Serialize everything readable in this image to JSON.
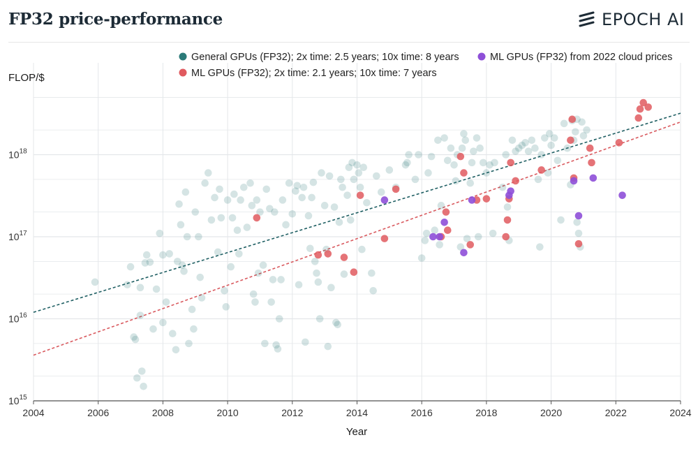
{
  "header": {
    "title": "FP32 price-performance",
    "brand": "EPOCH AI",
    "brand_icon": "epoch-logo-icon"
  },
  "colors": {
    "general": "#2b7a78",
    "ml": "#e05a5f",
    "cloud": "#8e4fd8",
    "grid": "#e4e7ea"
  },
  "chart_data": {
    "type": "scatter",
    "xlabel": "Year",
    "ylabel": "FLOP/$",
    "y_scale": "log",
    "xlim": [
      2004,
      2024
    ],
    "ylim": [
      1000000000000000.0,
      1e+19
    ],
    "x_ticks": [
      {
        "value": 2004,
        "label": "2004"
      },
      {
        "value": 2006,
        "label": "2006"
      },
      {
        "value": 2008,
        "label": "2008"
      },
      {
        "value": 2010,
        "label": "2010"
      },
      {
        "value": 2012,
        "label": "2012"
      },
      {
        "value": 2014,
        "label": "2014"
      },
      {
        "value": 2016,
        "label": "2016"
      },
      {
        "value": 2018,
        "label": "2018"
      },
      {
        "value": 2020,
        "label": "2020"
      },
      {
        "value": 2022,
        "label": "2022"
      },
      {
        "value": 2024,
        "label": "2024"
      }
    ],
    "y_ticks": [
      {
        "value": 15,
        "base": "10",
        "exp": "15"
      },
      {
        "value": 16,
        "base": "10",
        "exp": "16"
      },
      {
        "value": 17,
        "base": "10",
        "exp": "17"
      },
      {
        "value": 18,
        "base": "10",
        "exp": "18"
      }
    ],
    "legend": [
      {
        "series": "ml_cloud",
        "label": "ML GPUs (FP32) from 2022 cloud prices",
        "position": "top-right"
      },
      {
        "series": "general",
        "label": "General GPUs (FP32); 2x time: 2.5 years; 10x time: 8 years",
        "position": "top"
      },
      {
        "series": "ml",
        "label": "ML GPUs (FP32); 2x time: 2.1 years; 10x time: 7 years",
        "position": "top"
      }
    ],
    "trend_lines": [
      {
        "series": "general",
        "x": [
          2004,
          2024
        ],
        "y": [
          1.2e+16,
          3.2e+18
        ]
      },
      {
        "series": "ml",
        "x": [
          2004,
          2024
        ],
        "y": [
          3600000000000000.0,
          2.5e+18
        ]
      }
    ],
    "series": [
      {
        "name": "General GPUs (FP32)",
        "key": "general",
        "points": [
          [
            2005.9,
            2.8e+16
          ],
          [
            2006.9,
            2.6e+16
          ],
          [
            2007.0,
            4.3e+16
          ],
          [
            2007.1,
            6000000000000000.0
          ],
          [
            2007.15,
            5600000000000000.0
          ],
          [
            2007.2,
            1900000000000000.0
          ],
          [
            2007.3,
            2.4e+16
          ],
          [
            2007.3,
            1.1e+16
          ],
          [
            2007.35,
            2300000000000000.0
          ],
          [
            2007.4,
            1500000000000000.0
          ],
          [
            2007.45,
            4.8e+16
          ],
          [
            2007.5,
            6e+16
          ],
          [
            2007.6,
            4.9e+16
          ],
          [
            2007.7,
            7500000000000000.0
          ],
          [
            2007.8,
            2.3e+16
          ],
          [
            2007.9,
            1.1e+17
          ],
          [
            2008.0,
            6e+16
          ],
          [
            2008.0,
            9000000000000000.0
          ],
          [
            2008.1,
            1.6e+16
          ],
          [
            2008.2,
            6.2e+16
          ],
          [
            2008.3,
            6600000000000000.0
          ],
          [
            2008.4,
            4200000000000000.0
          ],
          [
            2008.45,
            5e+16
          ],
          [
            2008.5,
            2.5e+17
          ],
          [
            2008.55,
            1.4e+17
          ],
          [
            2008.6,
            4.5e+16
          ],
          [
            2008.65,
            3.8e+16
          ],
          [
            2008.7,
            3.5e+17
          ],
          [
            2008.75,
            1e+17
          ],
          [
            2008.8,
            5000000000000000.0
          ],
          [
            2008.9,
            1.3e+16
          ],
          [
            2008.95,
            7500000000000000.0
          ],
          [
            2009.0,
            2e+17
          ],
          [
            2009.1,
            1e+17
          ],
          [
            2009.15,
            3.2e+16
          ],
          [
            2009.2,
            1.8e+16
          ],
          [
            2009.3,
            4.5e+17
          ],
          [
            2009.4,
            6e+17
          ],
          [
            2009.5,
            1.6e+17
          ],
          [
            2009.6,
            3e+17
          ],
          [
            2009.7,
            6.5e+16
          ],
          [
            2009.75,
            3.8e+17
          ],
          [
            2009.8,
            1.7e+17
          ],
          [
            2009.9,
            2.2e+16
          ],
          [
            2009.95,
            1.4e+16
          ],
          [
            2010.0,
            2.8e+17
          ],
          [
            2010.1,
            4.3e+16
          ],
          [
            2010.15,
            1.7e+17
          ],
          [
            2010.2,
            3.3e+17
          ],
          [
            2010.3,
            1.2e+17
          ],
          [
            2010.35,
            6.2e+16
          ],
          [
            2010.4,
            2.8e+17
          ],
          [
            2010.5,
            4e+17
          ],
          [
            2010.6,
            1.3e+17
          ],
          [
            2010.7,
            4.5e+17
          ],
          [
            2010.75,
            2.4e+17
          ],
          [
            2010.8,
            2e+16
          ],
          [
            2010.85,
            1.6e+16
          ],
          [
            2010.9,
            2.8e+17
          ],
          [
            2010.95,
            3.6e+16
          ],
          [
            2011.0,
            2e+17
          ],
          [
            2011.1,
            4.5e+16
          ],
          [
            2011.15,
            5000000000000000.0
          ],
          [
            2011.2,
            3.8e+17
          ],
          [
            2011.3,
            2.2e+17
          ],
          [
            2011.35,
            1.6e+16
          ],
          [
            2011.4,
            3e+16
          ],
          [
            2011.45,
            2e+17
          ],
          [
            2011.5,
            4800000000000000.0
          ],
          [
            2011.55,
            4300000000000000.0
          ],
          [
            2011.6,
            1e+16
          ],
          [
            2011.65,
            3e+16
          ],
          [
            2011.7,
            2.8e+17
          ],
          [
            2011.8,
            1.4e+17
          ],
          [
            2011.9,
            4.5e+17
          ],
          [
            2012.0,
            1.9e+17
          ],
          [
            2012.1,
            3.6e+17
          ],
          [
            2012.15,
            4.2e+17
          ],
          [
            2012.2,
            2.6e+16
          ],
          [
            2012.3,
            3e+17
          ],
          [
            2012.35,
            4e+17
          ],
          [
            2012.4,
            5200000000000000.0
          ],
          [
            2012.5,
            1.8e+17
          ],
          [
            2012.55,
            7.2e+16
          ],
          [
            2012.6,
            3e+17
          ],
          [
            2012.65,
            4.6e+17
          ],
          [
            2012.7,
            5e+16
          ],
          [
            2012.75,
            3.6e+16
          ],
          [
            2012.8,
            2.8e+16
          ],
          [
            2012.85,
            1e+16
          ],
          [
            2012.9,
            6e+17
          ],
          [
            2013.0,
            2.4e+17
          ],
          [
            2013.05,
            7e+16
          ],
          [
            2013.1,
            4600000000000000.0
          ],
          [
            2013.15,
            5.5e+17
          ],
          [
            2013.2,
            2.4e+16
          ],
          [
            2013.3,
            2.3e+17
          ],
          [
            2013.35,
            9000000000000000.0
          ],
          [
            2013.4,
            8500000000000000.0
          ],
          [
            2013.45,
            1.5e+17
          ],
          [
            2013.5,
            5e+17
          ],
          [
            2013.55,
            4e+17
          ],
          [
            2013.6,
            3.5e+16
          ],
          [
            2013.7,
            3.2e+17
          ],
          [
            2013.75,
            7e+17
          ],
          [
            2013.8,
            1.6e+17
          ],
          [
            2013.85,
            8e+17
          ],
          [
            2013.9,
            5e+17
          ],
          [
            2014.0,
            7.5e+17
          ],
          [
            2014.05,
            6e+17
          ],
          [
            2014.1,
            4e+17
          ],
          [
            2014.15,
            7e+16
          ],
          [
            2014.2,
            7e+17
          ],
          [
            2014.3,
            2.6e+17
          ],
          [
            2014.45,
            3.6e+16
          ],
          [
            2014.5,
            2.2e+16
          ],
          [
            2014.6,
            5.5e+17
          ],
          [
            2014.75,
            3.5e+17
          ],
          [
            2015.0,
            6.5e+17
          ],
          [
            2015.2,
            4e+17
          ],
          [
            2015.5,
            7.5e+17
          ],
          [
            2015.55,
            8e+17
          ],
          [
            2015.6,
            1e+18
          ],
          [
            2015.8,
            5e+17
          ],
          [
            2015.9,
            1e+18
          ],
          [
            2016.0,
            5.5e+16
          ],
          [
            2016.1,
            9e+16
          ],
          [
            2016.15,
            1.1e+17
          ],
          [
            2016.2,
            6e+17
          ],
          [
            2016.3,
            9.5e+17
          ],
          [
            2016.4,
            1.2e+17
          ],
          [
            2016.5,
            1.5e+18
          ],
          [
            2016.55,
            8e+16
          ],
          [
            2016.6,
            2.4e+17
          ],
          [
            2016.7,
            1.6e+18
          ],
          [
            2016.8,
            8.5e+17
          ],
          [
            2016.9,
            1.2e+18
          ],
          [
            2017.0,
            7.5e+17
          ],
          [
            2017.05,
            4.8e+17
          ],
          [
            2017.1,
            1e+18
          ],
          [
            2017.2,
            7.5e+16
          ],
          [
            2017.25,
            1.2e+18
          ],
          [
            2017.3,
            1.8e+18
          ],
          [
            2017.35,
            1.5e+18
          ],
          [
            2017.4,
            9.5e+16
          ],
          [
            2017.5,
            4.5e+17
          ],
          [
            2017.55,
            8e+17
          ],
          [
            2017.6,
            1.1e+18
          ],
          [
            2017.7,
            1.6e+18
          ],
          [
            2017.75,
            1e+17
          ],
          [
            2017.8,
            1.2e+18
          ],
          [
            2017.9,
            8e+17
          ],
          [
            2018.0,
            6e+17
          ],
          [
            2018.1,
            7.5e+17
          ],
          [
            2018.2,
            1.1e+17
          ],
          [
            2018.25,
            8e+17
          ],
          [
            2018.5,
            4e+17
          ],
          [
            2018.6,
            1e+18
          ],
          [
            2018.65,
            2.3e+17
          ],
          [
            2018.7,
            9e+16
          ],
          [
            2018.8,
            1.5e+18
          ],
          [
            2018.9,
            1.1e+18
          ],
          [
            2019.0,
            1.2e+18
          ],
          [
            2019.1,
            1.3e+18
          ],
          [
            2019.2,
            1.4e+18
          ],
          [
            2019.3,
            1.1e+18
          ],
          [
            2019.4,
            1.5e+18
          ],
          [
            2019.5,
            1.2e+18
          ],
          [
            2019.6,
            5e+17
          ],
          [
            2019.65,
            7.5e+16
          ],
          [
            2019.7,
            1e+18
          ],
          [
            2019.8,
            1.6e+18
          ],
          [
            2019.9,
            6e+17
          ],
          [
            2019.95,
            1.8e+18
          ],
          [
            2020.0,
            1.3e+18
          ],
          [
            2020.1,
            1.6e+18
          ],
          [
            2020.2,
            8.5e+17
          ],
          [
            2020.3,
            1.6e+17
          ],
          [
            2020.4,
            2.4e+18
          ],
          [
            2020.5,
            1.2e+18
          ],
          [
            2020.6,
            4.3e+17
          ],
          [
            2020.65,
            2.6e+18
          ],
          [
            2020.7,
            1.5e+18
          ],
          [
            2020.75,
            1.9e+18
          ],
          [
            2020.8,
            1.5e+17
          ],
          [
            2020.85,
            1.1e+17
          ],
          [
            2020.9,
            7.5e+16
          ],
          [
            2020.95,
            2.5e+18
          ],
          [
            2021.0,
            1.7e+18
          ],
          [
            2021.1,
            2e+18
          ],
          [
            2020.8,
            2.7e+18
          ]
        ]
      },
      {
        "name": "ML GPUs (FP32)",
        "key": "ml",
        "points": [
          [
            2010.9,
            1.7e+17
          ],
          [
            2012.8,
            6e+16
          ],
          [
            2013.1,
            6.2e+16
          ],
          [
            2013.6,
            5.6e+16
          ],
          [
            2013.9,
            3.7e+16
          ],
          [
            2014.1,
            3.2e+17
          ],
          [
            2014.85,
            9.5e+16
          ],
          [
            2015.2,
            3.8e+17
          ],
          [
            2016.6,
            1e+17
          ],
          [
            2016.75,
            2e+17
          ],
          [
            2016.8,
            1.2e+17
          ],
          [
            2017.2,
            9.5e+17
          ],
          [
            2017.3,
            6e+17
          ],
          [
            2017.5,
            8e+16
          ],
          [
            2017.7,
            2.8e+17
          ],
          [
            2018.0,
            2.9e+17
          ],
          [
            2018.6,
            1e+17
          ],
          [
            2018.65,
            1.6e+17
          ],
          [
            2018.7,
            2.9e+17
          ],
          [
            2018.75,
            8e+17
          ],
          [
            2018.9,
            4.8e+17
          ],
          [
            2019.7,
            6.5e+17
          ],
          [
            2020.6,
            1.5e+18
          ],
          [
            2020.65,
            2.7e+18
          ],
          [
            2020.7,
            5.2e+17
          ],
          [
            2020.85,
            8.2e+16
          ],
          [
            2021.2,
            1.2e+18
          ],
          [
            2021.25,
            8e+17
          ],
          [
            2022.1,
            1.4e+18
          ],
          [
            2022.7,
            2.8e+18
          ],
          [
            2022.75,
            3.6e+18
          ],
          [
            2022.85,
            4.3e+18
          ],
          [
            2023.0,
            3.8e+18
          ]
        ]
      },
      {
        "name": "ML GPUs (FP32) from 2022 cloud prices",
        "key": "ml_cloud",
        "points": [
          [
            2014.85,
            2.8e+17
          ],
          [
            2016.35,
            1e+17
          ],
          [
            2016.55,
            1e+17
          ],
          [
            2016.7,
            1.5e+17
          ],
          [
            2017.3,
            6.4e+16
          ],
          [
            2017.55,
            2.8e+17
          ],
          [
            2018.7,
            3.2e+17
          ],
          [
            2018.75,
            3.6e+17
          ],
          [
            2020.7,
            4.8e+17
          ],
          [
            2020.85,
            1.8e+17
          ],
          [
            2021.3,
            5.2e+17
          ],
          [
            2022.2,
            3.2e+17
          ]
        ]
      }
    ]
  }
}
